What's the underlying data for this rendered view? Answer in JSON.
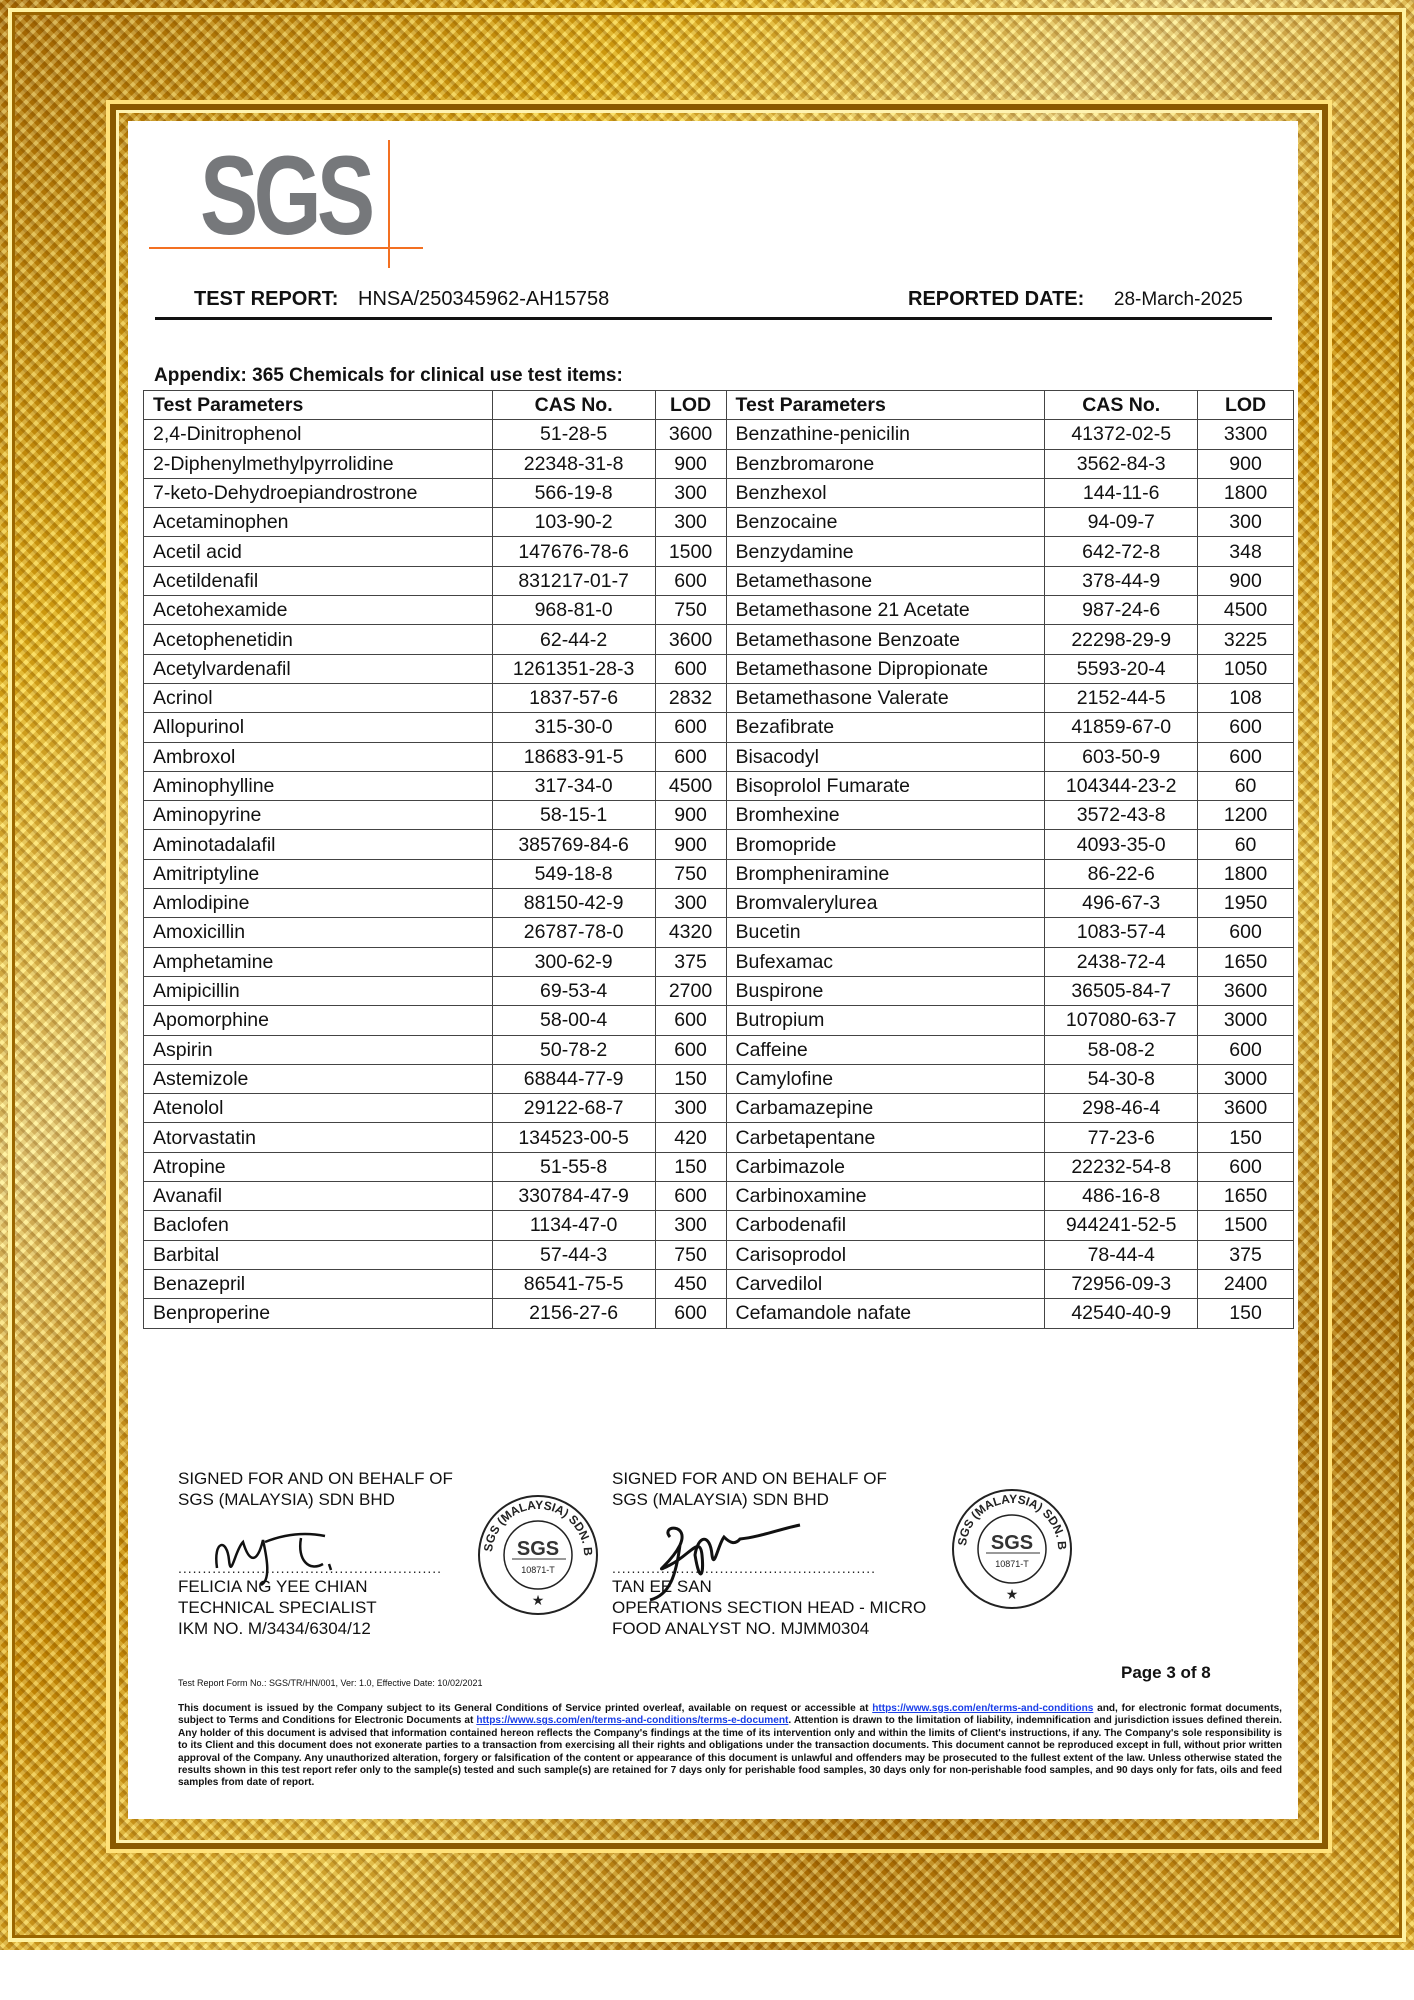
{
  "logo": {
    "text": "SGS"
  },
  "header": {
    "report_label": "TEST REPORT:",
    "report_number": "HNSA/250345962-AH15758",
    "date_label": "REPORTED DATE:",
    "date_value": "28-March-2025"
  },
  "appendix_title": "Appendix: 365 Chemicals for clinical use test items:",
  "table": {
    "headers": [
      "Test Parameters",
      "CAS No.",
      "LOD",
      "Test Parameters",
      "CAS No.",
      "LOD"
    ],
    "rows": [
      [
        "2,4-Dinitrophenol",
        "51-28-5",
        "3600",
        "Benzathine-penicilin",
        "41372-02-5",
        "3300"
      ],
      [
        "2-Diphenylmethylpyrrolidine",
        "22348-31-8",
        "900",
        "Benzbromarone",
        "3562-84-3",
        "900"
      ],
      [
        "7-keto-Dehydroepiandrostrone",
        "566-19-8",
        "300",
        "Benzhexol",
        "144-11-6",
        "1800"
      ],
      [
        "Acetaminophen",
        "103-90-2",
        "300",
        "Benzocaine",
        "94-09-7",
        "300"
      ],
      [
        "Acetil acid",
        "147676-78-6",
        "1500",
        "Benzydamine",
        "642-72-8",
        "348"
      ],
      [
        "Acetildenafil",
        "831217-01-7",
        "600",
        "Betamethasone",
        "378-44-9",
        "900"
      ],
      [
        "Acetohexamide",
        "968-81-0",
        "750",
        "Betamethasone 21 Acetate",
        "987-24-6",
        "4500"
      ],
      [
        "Acetophenetidin",
        "62-44-2",
        "3600",
        "Betamethasone Benzoate",
        "22298-29-9",
        "3225"
      ],
      [
        "Acetylvardenafil",
        "1261351-28-3",
        "600",
        "Betamethasone Dipropionate",
        "5593-20-4",
        "1050"
      ],
      [
        "Acrinol",
        "1837-57-6",
        "2832",
        "Betamethasone Valerate",
        "2152-44-5",
        "108"
      ],
      [
        "Allopurinol",
        "315-30-0",
        "600",
        "Bezafibrate",
        "41859-67-0",
        "600"
      ],
      [
        "Ambroxol",
        "18683-91-5",
        "600",
        "Bisacodyl",
        "603-50-9",
        "600"
      ],
      [
        "Aminophylline",
        "317-34-0",
        "4500",
        "Bisoprolol Fumarate",
        "104344-23-2",
        "60"
      ],
      [
        "Aminopyrine",
        "58-15-1",
        "900",
        "Bromhexine",
        "3572-43-8",
        "1200"
      ],
      [
        "Aminotadalafil",
        "385769-84-6",
        "900",
        "Bromopride",
        "4093-35-0",
        "60"
      ],
      [
        "Amitriptyline",
        "549-18-8",
        "750",
        "Brompheniramine",
        "86-22-6",
        "1800"
      ],
      [
        "Amlodipine",
        "88150-42-9",
        "300",
        "Bromvalerylurea",
        "496-67-3",
        "1950"
      ],
      [
        "Amoxicillin",
        "26787-78-0",
        "4320",
        "Bucetin",
        "1083-57-4",
        "600"
      ],
      [
        "Amphetamine",
        "300-62-9",
        "375",
        "Bufexamac",
        "2438-72-4",
        "1650"
      ],
      [
        "Amipicillin",
        "69-53-4",
        "2700",
        "Buspirone",
        "36505-84-7",
        "3600"
      ],
      [
        "Apomorphine",
        "58-00-4",
        "600",
        "Butropium",
        "107080-63-7",
        "3000"
      ],
      [
        "Aspirin",
        "50-78-2",
        "600",
        "Caffeine",
        "58-08-2",
        "600"
      ],
      [
        "Astemizole",
        "68844-77-9",
        "150",
        "Camylofine",
        "54-30-8",
        "3000"
      ],
      [
        "Atenolol",
        "29122-68-7",
        "300",
        "Carbamazepine",
        "298-46-4",
        "3600"
      ],
      [
        "Atorvastatin",
        "134523-00-5",
        "420",
        "Carbetapentane",
        "77-23-6",
        "150"
      ],
      [
        "Atropine",
        "51-55-8",
        "150",
        "Carbimazole",
        "22232-54-8",
        "600"
      ],
      [
        "Avanafil",
        "330784-47-9",
        "600",
        "Carbinoxamine",
        "486-16-8",
        "1650"
      ],
      [
        "Baclofen",
        "1134-47-0",
        "300",
        "Carbodenafil",
        "944241-52-5",
        "1500"
      ],
      [
        "Barbital",
        "57-44-3",
        "750",
        "Carisoprodol",
        "78-44-4",
        "375"
      ],
      [
        "Benazepril",
        "86541-75-5",
        "450",
        "Carvedilol",
        "72956-09-3",
        "2400"
      ],
      [
        "Benproperine",
        "2156-27-6",
        "600",
        "Cefamandole nafate",
        "42540-40-9",
        "150"
      ]
    ]
  },
  "signatories": [
    {
      "line1": "SIGNED FOR AND ON BEHALF OF",
      "line2": "SGS (MALAYSIA) SDN BHD",
      "dots": "......................................................",
      "name": "FELICIA NG YEE CHIAN",
      "title": "TECHNICAL SPECIALIST",
      "reg": "IKM NO. M/3434/6304/12"
    },
    {
      "line1": "SIGNED FOR AND ON BEHALF OF",
      "line2": "SGS (MALAYSIA) SDN BHD",
      "dots": "......................................................",
      "name": "TAN EE SAN",
      "title": "OPERATIONS SECTION HEAD - MICRO",
      "reg": "FOOD ANALYST NO. MJMM0304"
    }
  ],
  "stamp": {
    "ring_text": "SGS (MALAYSIA) SDN. BHD.",
    "center": "SGS",
    "number": "10871-T"
  },
  "form_no": "Test Report Form No.: SGS/TR/HN/001, Ver: 1.0, Effective Date: 10/02/2021",
  "page_no": "Page 3 of 8",
  "disclaimer": {
    "part1": "This document is issued by the Company subject to its General Conditions of Service printed overleaf, available on request or accessible at ",
    "link1": "https://www.sgs.com/en/terms-and-conditions",
    "part2": " and, for electronic format documents, subject to Terms and Conditions for Electronic Documents at ",
    "link2": "https://www.sgs.com/en/terms-and-conditions/terms-e-document",
    "part3": ". Attention is drawn to the limitation of liability, indemnification and jurisdiction issues defined therein. Any holder of this document is advised that information contained hereon reflects the Company's findings at the time of its intervention only and within the limits of Client's instructions, if any. The Company's sole responsibility is to its Client and this document does not exonerate parties to a transaction from exercising all their rights and obligations under the transaction documents. This document cannot be reproduced except in full, without prior written approval of the Company. Any unauthorized alteration, forgery or falsification of the content or appearance of this document is unlawful and offenders may be prosecuted to the fullest extent of the law. Unless otherwise stated the results shown in this test report refer only to the sample(s) tested and such sample(s) are retained for 7 days only for perishable food samples, 30 days only for non-perishable food samples, and 90 days only for fats, oils and feed samples from date of report."
  },
  "colors": {
    "logo_gray": "#76787b",
    "logo_orange": "#f37021",
    "frame_gold": "#f5c518",
    "link_blue": "#1a3ee8"
  }
}
